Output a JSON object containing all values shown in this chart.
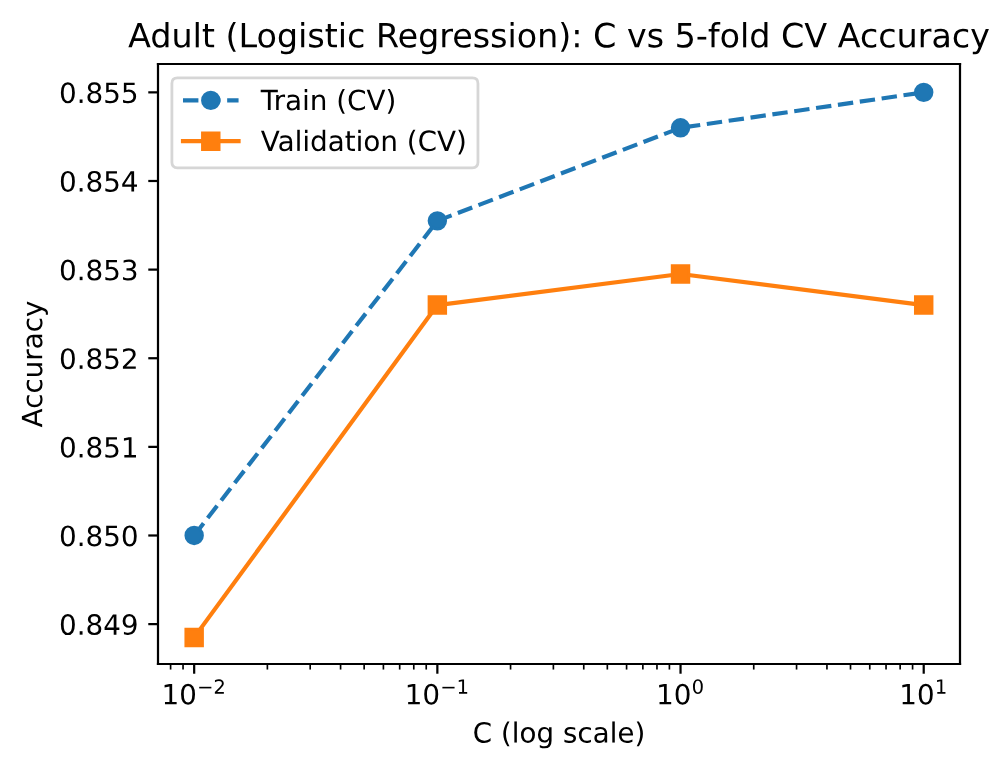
{
  "chart_data": {
    "type": "line",
    "title": "Adult (Logistic Regression): C vs 5-fold CV Accuracy",
    "xlabel": "C (log scale)",
    "ylabel": "Accuracy",
    "x": [
      0.01,
      0.1,
      1,
      10
    ],
    "series": [
      {
        "name": "Train (CV)",
        "color": "#1f77b4",
        "values": [
          0.85,
          0.85355,
          0.8546,
          0.855
        ],
        "marker": "circle",
        "line_style": "dashed"
      },
      {
        "name": "Validation (CV)",
        "color": "#ff7f0e",
        "values": [
          0.84885,
          0.8526,
          0.85295,
          0.8526
        ],
        "marker": "square",
        "line_style": "solid"
      }
    ],
    "log": "x",
    "xlim": [
      0.0071,
      14.1
    ],
    "xticks": [
      {
        "value": 0.01,
        "label": "10$^{−2}$"
      },
      {
        "value": 0.1,
        "label": "10$^{−1}$"
      },
      {
        "value": 1,
        "label": "10$^{0}$"
      },
      {
        "value": 10,
        "label": "10$^{1}$"
      }
    ],
    "ylim": [
      0.84855,
      0.85532
    ],
    "yticks": [
      0.849,
      {
        "value": 0.85,
        "label": "0.850"
      },
      0.851,
      0.852,
      0.853,
      0.854,
      0.855
    ],
    "grid": false,
    "legend": "top left"
  }
}
